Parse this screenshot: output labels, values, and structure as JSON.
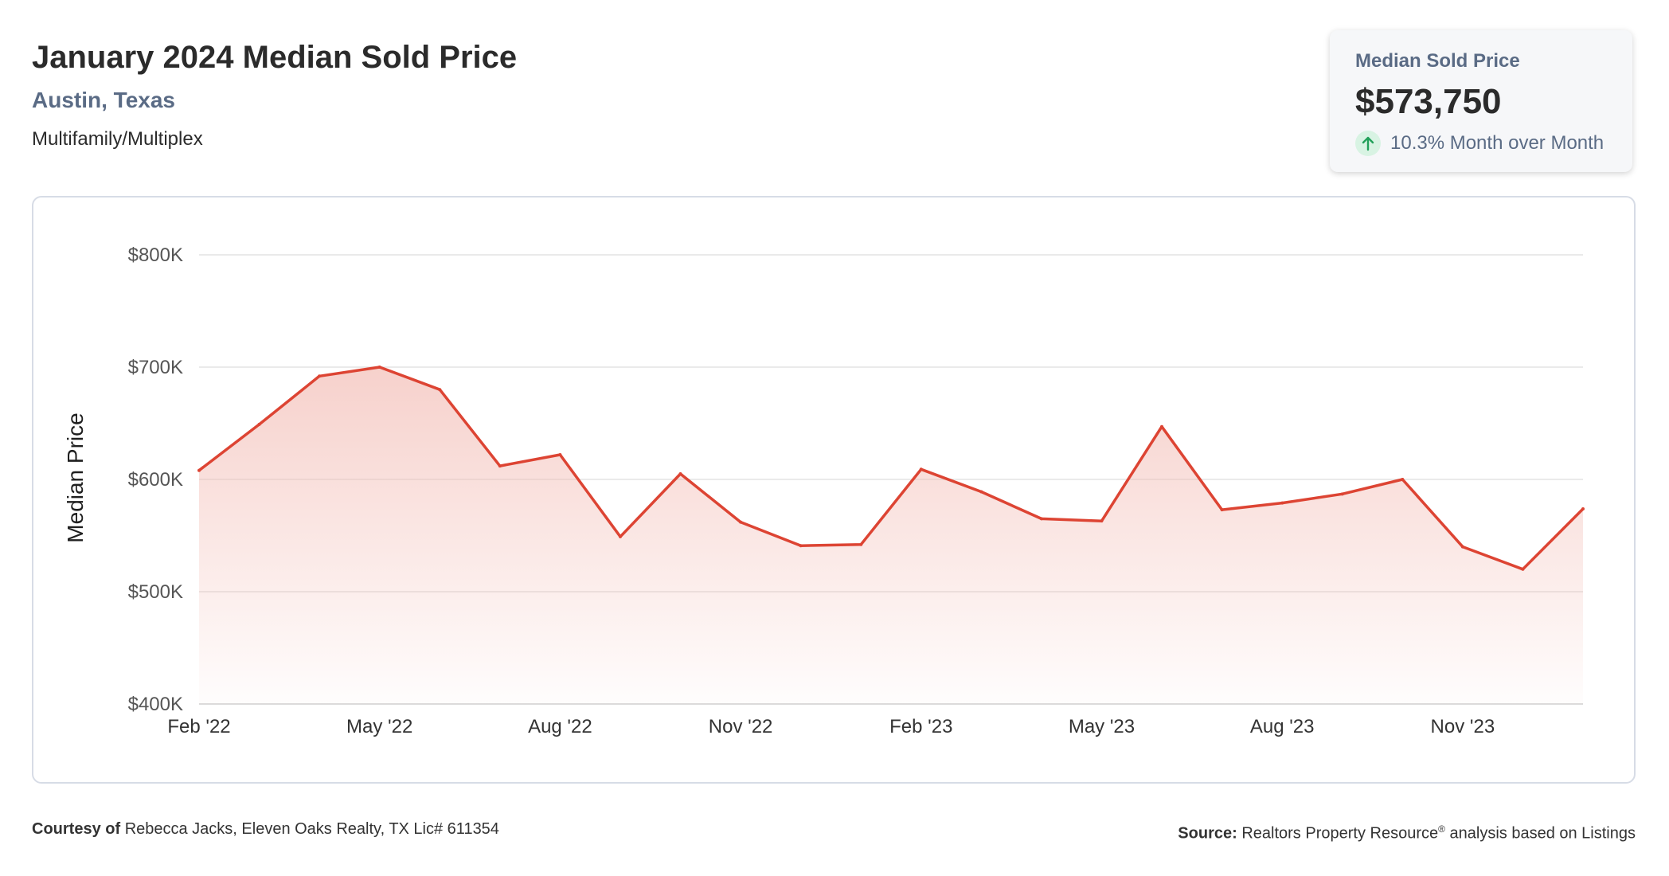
{
  "header": {
    "title": "January 2024 Median Sold Price",
    "location": "Austin, Texas",
    "property_type": "Multifamily/Multiplex"
  },
  "stat_card": {
    "label": "Median Sold Price",
    "value": "$573,750",
    "change_text": "10.3% Month over Month",
    "change_direction": "up",
    "change_icon": "arrow-up-icon",
    "change_color": "#22a05a"
  },
  "chart_data": {
    "type": "area",
    "ylabel": "Median Price",
    "xlabel": "",
    "ylim": [
      400000,
      800000
    ],
    "y_ticks": [
      {
        "value": 800000,
        "label": "$800K"
      },
      {
        "value": 700000,
        "label": "$700K"
      },
      {
        "value": 600000,
        "label": "$600K"
      },
      {
        "value": 500000,
        "label": "$500K"
      },
      {
        "value": 400000,
        "label": "$400K"
      }
    ],
    "x_ticks": [
      {
        "index": 0,
        "label": "Feb '22"
      },
      {
        "index": 3,
        "label": "May '22"
      },
      {
        "index": 6,
        "label": "Aug '22"
      },
      {
        "index": 9,
        "label": "Nov '22"
      },
      {
        "index": 12,
        "label": "Feb '23"
      },
      {
        "index": 15,
        "label": "May '23"
      },
      {
        "index": 18,
        "label": "Aug '23"
      },
      {
        "index": 21,
        "label": "Nov '23"
      }
    ],
    "x": [
      "Feb 2022",
      "Mar 2022",
      "Apr 2022",
      "May 2022",
      "Jun 2022",
      "Jul 2022",
      "Aug 2022",
      "Sep 2022",
      "Oct 2022",
      "Nov 2022",
      "Dec 2022",
      "Jan 2023",
      "Feb 2023",
      "Mar 2023",
      "Apr 2023",
      "May 2023",
      "Jun 2023",
      "Jul 2023",
      "Aug 2023",
      "Sep 2023",
      "Oct 2023",
      "Nov 2023",
      "Dec 2023",
      "Jan 2024"
    ],
    "values": [
      608000,
      649000,
      692000,
      700000,
      680000,
      612000,
      622000,
      549000,
      605000,
      562000,
      541000,
      542000,
      609000,
      589000,
      565000,
      563000,
      647000,
      573000,
      579000,
      587000,
      600000,
      540000,
      520000,
      573750
    ],
    "line_color": "#dd4433",
    "fill_color": "#f2b8b0",
    "grid": true
  },
  "footer": {
    "courtesy_label": "Courtesy of",
    "courtesy_text": "Rebecca Jacks, Eleven Oaks Realty, TX Lic# 611354",
    "source_label": "Source:",
    "source_text": "Realtors Property Resource",
    "source_mark": "®",
    "source_suffix": "analysis based on Listings"
  }
}
